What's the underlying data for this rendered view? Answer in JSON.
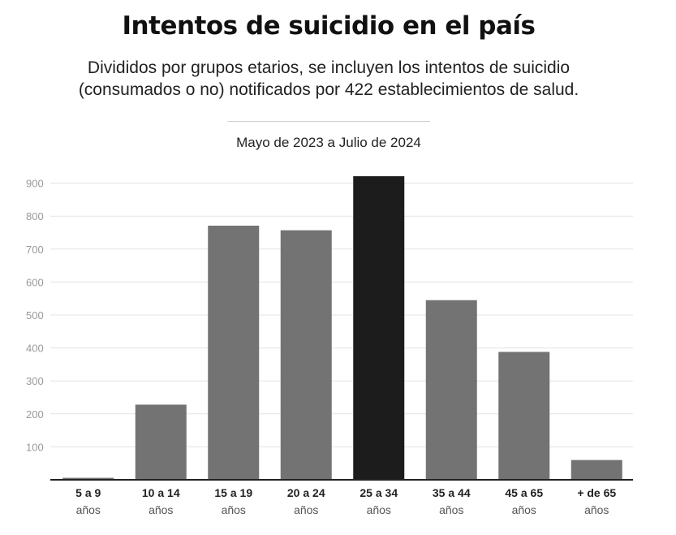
{
  "header": {
    "title": "Intentos de suicidio en el país",
    "subtitle_line1": "Divididos por grupos etarios, se incluyen los intentos de suicidio",
    "subtitle_line2": "(consumados o no) notificados por 422 establecimientos de salud.",
    "period": "Mayo de 2023 a Julio de 2024"
  },
  "colors": {
    "bar": "#737373",
    "highlight": "#1c1c1c",
    "grid": "#e3e3e3",
    "axis": "#222222"
  },
  "chart_data": {
    "type": "bar",
    "categories": [
      {
        "label": "5 a 9",
        "sub": "años"
      },
      {
        "label": "10 a 14",
        "sub": "años"
      },
      {
        "label": "15 a 19",
        "sub": "años"
      },
      {
        "label": "20 a 24",
        "sub": "años"
      },
      {
        "label": "25 a 34",
        "sub": "años"
      },
      {
        "label": "35 a 44",
        "sub": "años"
      },
      {
        "label": "45 a 65",
        "sub": "años"
      },
      {
        "label": "+ de 65",
        "sub": "años"
      }
    ],
    "values": [
      6,
      228,
      771,
      757,
      921,
      545,
      388,
      60
    ],
    "highlight_index": 4,
    "ylim": [
      0,
      950
    ],
    "yticks": [
      100,
      200,
      300,
      400,
      500,
      600,
      700,
      800,
      900
    ],
    "grid": true
  }
}
